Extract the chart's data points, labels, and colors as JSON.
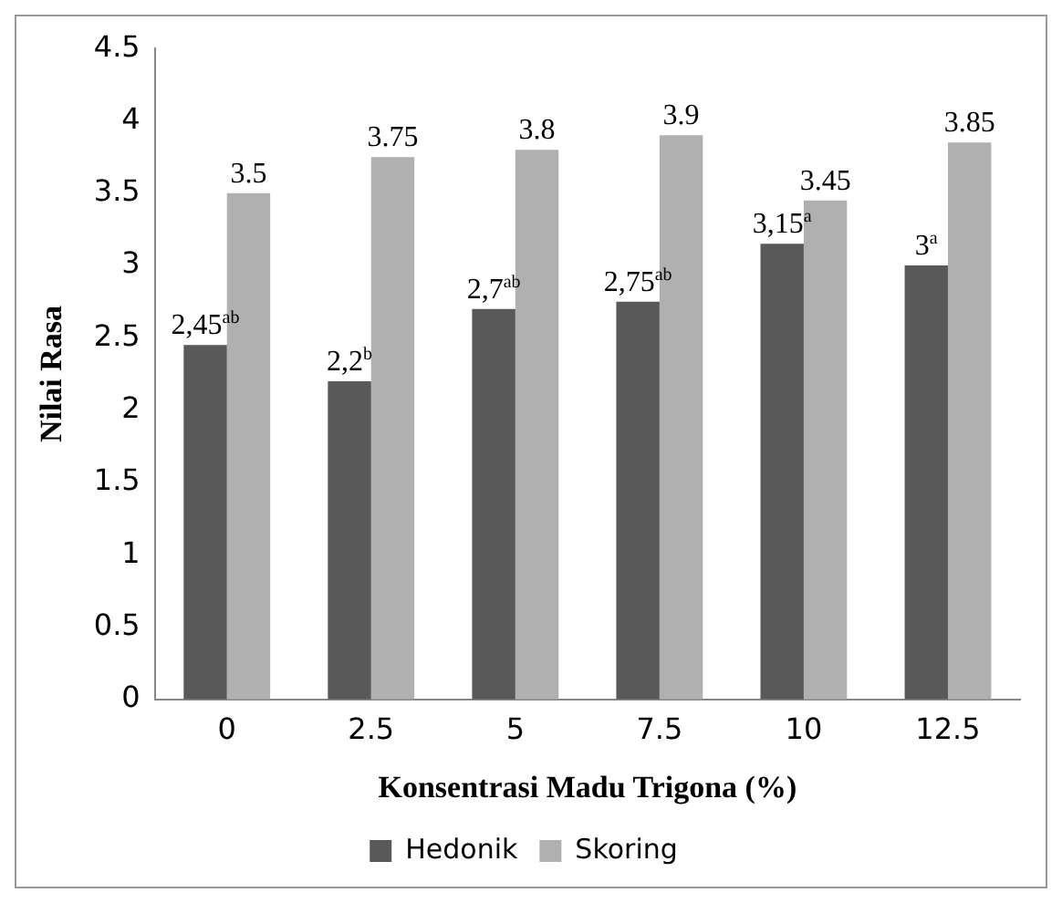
{
  "chart_data": {
    "type": "bar",
    "xlabel": "Konsentrasi Madu Trigona (%)",
    "ylabel": "Nilai Rasa",
    "categories": [
      "0",
      "2.5",
      "5",
      "7.5",
      "10",
      "12.5"
    ],
    "series": [
      {
        "name": "Hedonik",
        "color": "#595959",
        "values": [
          2.45,
          2.2,
          2.7,
          2.75,
          3.15,
          3
        ],
        "value_labels": [
          "2,45$^{ab}$",
          "2,2$^{b}$",
          "2,7$^{ab}$",
          "2,75$^{ab}$",
          "3,15$^{a}$",
          "3$^{a}$"
        ]
      },
      {
        "name": "Skoring",
        "color": "#b0b0b0",
        "values": [
          3.5,
          3.75,
          3.8,
          3.9,
          3.45,
          3.85
        ],
        "value_labels": [
          "3.5",
          "3.75",
          "3.8",
          "3.9",
          "3.45",
          "3.85"
        ]
      }
    ],
    "ylim": [
      0,
      4.5
    ],
    "yticks": [
      0,
      0.5,
      1,
      1.5,
      2,
      2.5,
      3,
      3.5,
      4,
      4.5
    ],
    "grid": false,
    "legend": "bottom"
  }
}
